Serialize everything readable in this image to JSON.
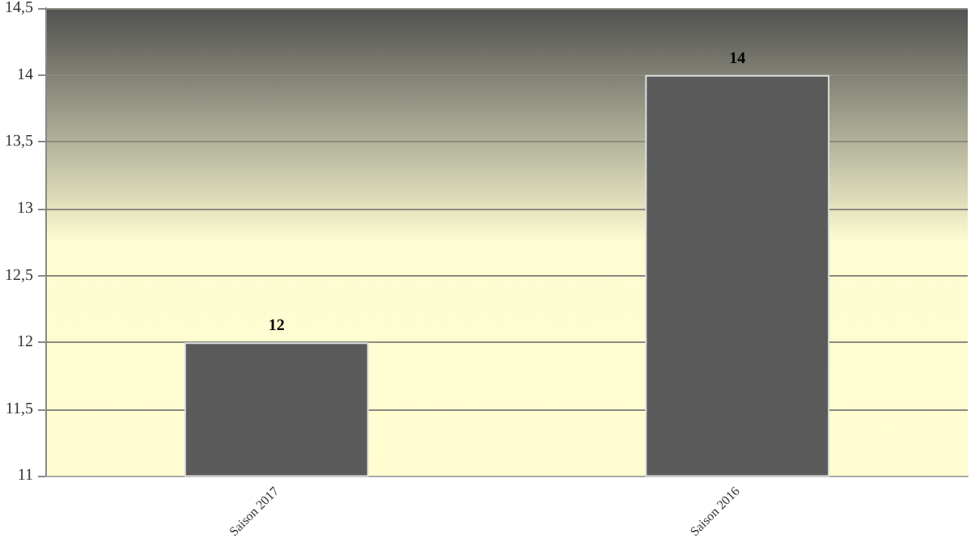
{
  "chart_data": {
    "type": "bar",
    "categories": [
      "Saison 2017",
      "Saison 2016"
    ],
    "values": [
      12,
      14
    ],
    "color": "#5a5a5a",
    "ylim": [
      11,
      14.5
    ],
    "yticks": [
      11,
      {
        "value": 11.5,
        "label": "11,5"
      },
      12,
      {
        "value": 12.5,
        "label": "12,5"
      },
      13,
      {
        "value": 13.5,
        "label": "13,5"
      },
      14,
      {
        "value": 14.5,
        "label": "14,5"
      }
    ],
    "grid": "y",
    "data_labels": true
  }
}
